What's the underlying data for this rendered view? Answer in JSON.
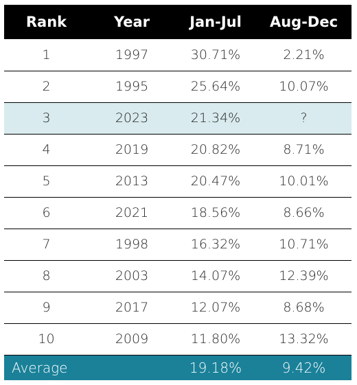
{
  "headers": [
    "Rank",
    "Year",
    "Jan-Jul",
    "Aug-Dec"
  ],
  "rows": [
    {
      "rank": "1",
      "year": "1997",
      "jan_jul": "30.71%",
      "aug_dec": "2.21%"
    },
    {
      "rank": "2",
      "year": "1995",
      "jan_jul": "25.64%",
      "aug_dec": "10.07%"
    },
    {
      "rank": "3",
      "year": "2023",
      "jan_jul": "21.34%",
      "aug_dec": "?"
    },
    {
      "rank": "4",
      "year": "2019",
      "jan_jul": "20.82%",
      "aug_dec": "8.71%"
    },
    {
      "rank": "5",
      "year": "2013",
      "jan_jul": "20.47%",
      "aug_dec": "10.01%"
    },
    {
      "rank": "6",
      "year": "2021",
      "jan_jul": "18.56%",
      "aug_dec": "8.66%"
    },
    {
      "rank": "7",
      "year": "1998",
      "jan_jul": "16.32%",
      "aug_dec": "10.71%"
    },
    {
      "rank": "8",
      "year": "2003",
      "jan_jul": "14.07%",
      "aug_dec": "12.39%"
    },
    {
      "rank": "9",
      "year": "2017",
      "jan_jul": "12.07%",
      "aug_dec": "8.68%"
    },
    {
      "rank": "10",
      "year": "2009",
      "jan_jul": "11.80%",
      "aug_dec": "13.32%"
    }
  ],
  "average": {
    "label": "Average",
    "jan_jul": "19.18%",
    "aug_dec": "9.42%"
  },
  "highlighted_rank": "3",
  "colors": {
    "header_bg": "#000000",
    "highlight_bg": "#d9ebee",
    "average_bg": "#1a8199"
  }
}
